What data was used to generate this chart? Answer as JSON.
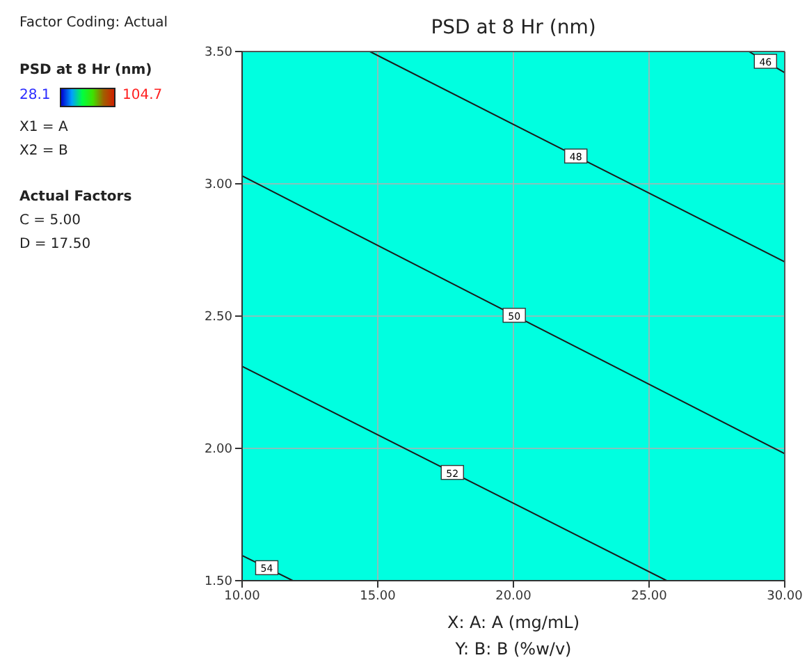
{
  "chart_data": {
    "type": "line",
    "title": "PSD at 8 Hr (nm)",
    "xlabel": "X: A: A (mg/mL)",
    "clabel": "PSD at 8 Hr (nm)",
    "annotations": [
      "Factor Coding: Actual",
      "28.1",
      "104.7",
      "X1 = A",
      "X2 = B",
      "Actual Factors",
      "C = 5.00",
      "D = 17.50",
      "Y: B: B (%w/v)"
    ],
    "xlim": [
      10,
      30
    ],
    "xticks": [
      {
        "value": 10,
        "label": "10.00"
      },
      {
        "value": 15,
        "label": "15.00"
      },
      {
        "value": 20,
        "label": "20.00"
      },
      {
        "value": 25,
        "label": "25.00"
      },
      {
        "value": 30,
        "label": "30.00"
      }
    ],
    "ylim": [
      1.5,
      3.5
    ],
    "yticks": [
      {
        "value": 1.5,
        "label": "1.50"
      },
      {
        "value": 2,
        "label": "2.00"
      },
      {
        "value": 2.5,
        "label": "2.50"
      },
      {
        "value": 3,
        "label": "3.00"
      },
      {
        "value": 3.5,
        "label": "3.50"
      }
    ],
    "grid": true,
    "bands": [
      {
        "axis": "y",
        "from": 1.5,
        "to": 3.5,
        "color": "#00ffe0"
      }
    ],
    "series": [
      {
        "name": "46",
        "color": "#1a1a1a",
        "x": [
          28.68,
          29.29,
          30
        ],
        "values": [
          3.5,
          3.463,
          3.42
        ]
      },
      {
        "name": "48",
        "color": "#1a1a1a",
        "x": [
          14.71,
          22.3,
          30
        ],
        "values": [
          3.5,
          3.105,
          2.705
        ]
      },
      {
        "name": "50",
        "color": "#1a1a1a",
        "x": [
          10,
          20.03,
          30
        ],
        "values": [
          3.03,
          2.503,
          1.98
        ]
      },
      {
        "name": "52",
        "color": "#1a1a1a",
        "x": [
          10,
          17.75,
          25.65
        ],
        "values": [
          2.31,
          1.909,
          1.5
        ]
      },
      {
        "name": "54",
        "color": "#1a1a1a",
        "x": [
          10,
          10.91,
          11.87
        ],
        "values": [
          1.595,
          1.549,
          1.5
        ]
      }
    ]
  }
}
